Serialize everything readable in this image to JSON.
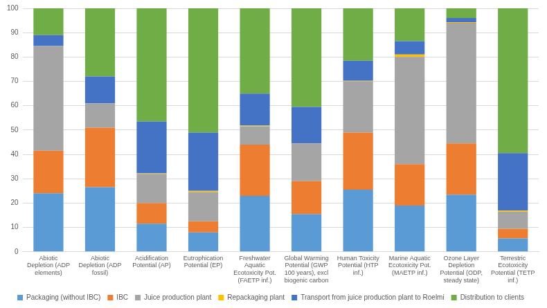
{
  "chart_data": {
    "type": "bar",
    "stacked": true,
    "grid": true,
    "legend": "bottom",
    "categories": [
      "Abiotic Depletion (ADP elements)",
      "Abiotic Depletion (ADP fossil)",
      "Acidification Potential (AP)",
      "Eutrophication Potential (EP)",
      "Freshwater Aquatic Ecotoxicity Pot. (FAETP inf.)",
      "Global Warming Potential (GWP 100 years), excl biogenic carbon",
      "Human Toxicity Potential (HTP inf.)",
      "Marine Aquatic Ecotoxicity Pot. (MAETP inf.)",
      "Ozone Layer Depletion Potential (ODP, steady state)",
      "Terrestric Ecotoxicity Potential (TETP inf.)"
    ],
    "series": [
      {
        "name": "Packaging (without IBC)",
        "color": "#5b9bd5",
        "values": [
          24,
          26.5,
          11.5,
          8,
          23,
          15.5,
          25.5,
          19,
          23.5,
          5.5
        ]
      },
      {
        "name": "IBC",
        "color": "#ed7d31",
        "values": [
          17.5,
          24.5,
          8.5,
          4.5,
          21,
          13.5,
          23.5,
          17,
          21,
          4
        ]
      },
      {
        "name": "Juice production plant",
        "color": "#a5a5a5",
        "values": [
          43,
          10,
          12,
          12,
          7.5,
          15.5,
          21,
          44,
          49.5,
          7
        ]
      },
      {
        "name": "Repackaging plant",
        "color": "#ffc000",
        "values": [
          0,
          0,
          0.2,
          0.5,
          0.3,
          0.1,
          0.2,
          1,
          0.3,
          0.5
        ]
      },
      {
        "name": "Transport from juice production plant to Roelmi",
        "color": "#4472c4",
        "values": [
          4.5,
          11,
          21.3,
          24,
          13.2,
          14.9,
          8.3,
          5.5,
          1.7,
          23.5
        ]
      },
      {
        "name": "Distribution to clients",
        "color": "#70ad47",
        "values": [
          11,
          28,
          46.5,
          51,
          35,
          40.5,
          21.5,
          13.5,
          4,
          59.5
        ]
      }
    ],
    "ylim": [
      0,
      100
    ],
    "yticks": [
      0,
      10,
      20,
      30,
      40,
      50,
      60,
      70,
      80,
      90,
      100
    ]
  }
}
